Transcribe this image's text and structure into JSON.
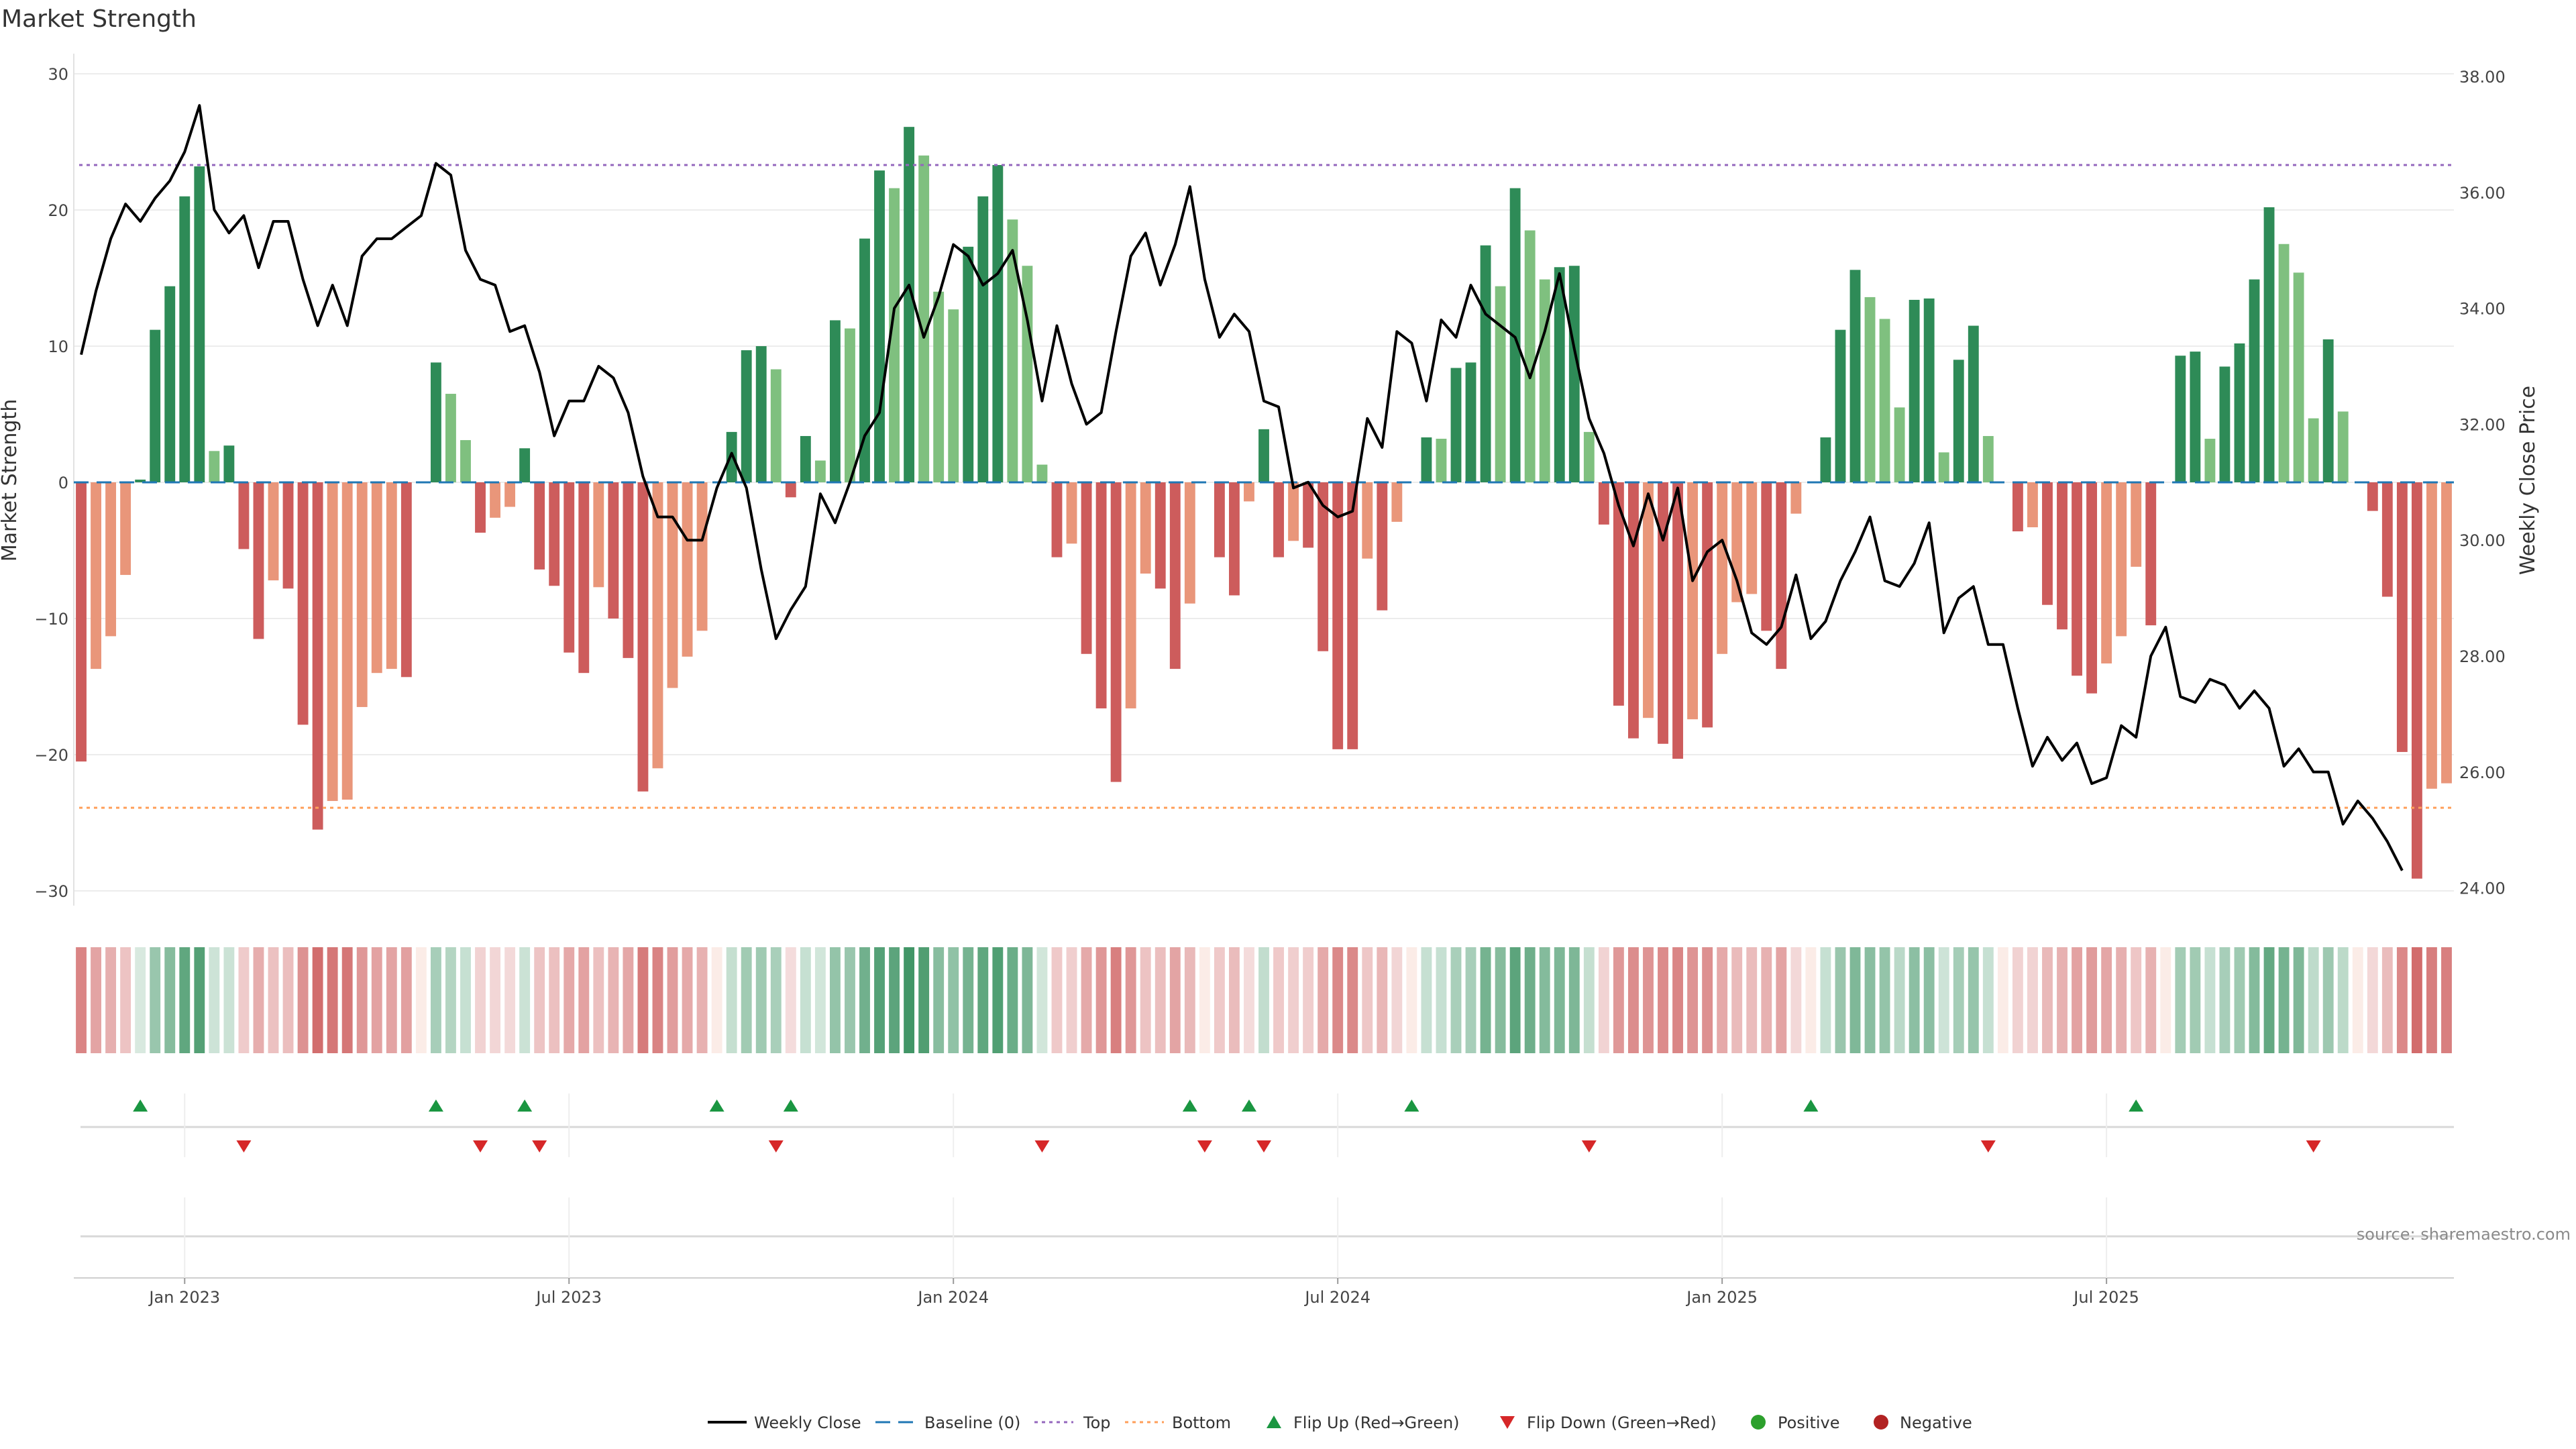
{
  "chart_data": {
    "type": "bar+line",
    "title": "Market Strength",
    "ylabel": "Market Strength",
    "y2label": "Weekly Close Price",
    "ylim": [
      -30,
      30
    ],
    "y2lim": [
      24,
      38
    ],
    "yticks": [
      "30",
      "20",
      "10",
      "0",
      "−10",
      "−20",
      "−30"
    ],
    "y2ticks": [
      "38.00",
      "36.00",
      "34.00",
      "32.00",
      "30.00",
      "28.00",
      "26.00",
      "24.00"
    ],
    "xticks": [
      "Jan 2023",
      "Jul 2023",
      "Jan 2024",
      "Jul 2024",
      "Jan 2025",
      "Jul 2025"
    ],
    "xtick_week_index": [
      7.5,
      33.5,
      59.5,
      85.5,
      111.5,
      137.5
    ],
    "top_line": 23.3,
    "bottom_line": -23.9,
    "baseline": 0,
    "strength": [
      -20.5,
      -13.7,
      -11.3,
      -6.8,
      0.2,
      11.2,
      14.4,
      21.0,
      23.2,
      2.3,
      2.7,
      -4.9,
      -11.5,
      -7.2,
      -7.8,
      -17.8,
      -25.5,
      -23.4,
      -23.3,
      -16.5,
      -14.0,
      -13.7,
      -14.3,
      0.0,
      8.8,
      6.5,
      3.1,
      -3.7,
      -2.6,
      -1.8,
      2.5,
      -6.4,
      -7.6,
      -12.5,
      -14.0,
      -7.7,
      -10.0,
      -12.9,
      -22.7,
      -21.0,
      -15.1,
      -12.8,
      -10.9,
      0.0,
      3.7,
      9.7,
      10.0,
      8.3,
      -1.1,
      3.4,
      1.6,
      11.9,
      11.3,
      17.9,
      22.9,
      21.6,
      26.1,
      24.0,
      14.0,
      12.7,
      17.3,
      21.0,
      23.3,
      19.3,
      15.9,
      1.3,
      -5.5,
      -4.5,
      -12.6,
      -16.6,
      -22.0,
      -16.6,
      -6.7,
      -7.8,
      -13.7,
      -8.9,
      0.0,
      -5.5,
      -8.3,
      -1.4,
      3.9,
      -5.5,
      -4.3,
      -4.8,
      -12.4,
      -19.6,
      -19.6,
      -5.6,
      -9.4,
      -2.9,
      0.0,
      3.3,
      3.2,
      8.4,
      8.8,
      17.4,
      14.4,
      21.6,
      18.5,
      14.9,
      15.8,
      15.9,
      3.7,
      -3.1,
      -16.4,
      -18.8,
      -17.3,
      -19.2,
      -20.3,
      -17.4,
      -18.0,
      -12.6,
      -8.8,
      -8.2,
      -10.9,
      -13.7,
      -2.3,
      0.0,
      3.3,
      11.2,
      15.6,
      13.6,
      12.0,
      5.5,
      13.4,
      13.5,
      2.2,
      9.0,
      11.5,
      3.4,
      0.0,
      -3.6,
      -3.3,
      -9.0,
      -10.8,
      -14.2,
      -15.5,
      -13.3,
      -11.3,
      -6.2,
      -10.5,
      0.0,
      9.3,
      9.6,
      3.2,
      8.5,
      10.2,
      14.9,
      20.2,
      17.5,
      15.4,
      4.7,
      10.5,
      5.2,
      0.0,
      -2.1,
      -8.4,
      -19.8,
      -29.1,
      -22.5,
      -22.1
    ],
    "weekly_close": [
      33.2,
      34.3,
      35.2,
      35.8,
      35.5,
      35.9,
      36.2,
      36.7,
      37.5,
      35.7,
      35.3,
      35.6,
      34.7,
      35.5,
      35.5,
      34.5,
      33.7,
      34.4,
      33.7,
      34.9,
      35.2,
      35.2,
      35.4,
      35.6,
      36.5,
      36.3,
      35.0,
      34.5,
      34.4,
      33.6,
      33.7,
      32.9,
      31.8,
      32.4,
      32.4,
      33.0,
      32.8,
      32.2,
      31.1,
      30.4,
      30.4,
      30.0,
      30.0,
      30.9,
      31.5,
      30.9,
      29.5,
      28.3,
      28.8,
      29.2,
      30.8,
      30.3,
      31.0,
      31.8,
      32.2,
      34.0,
      34.4,
      33.5,
      34.2,
      35.1,
      34.9,
      34.4,
      34.6,
      35.0,
      33.8,
      32.4,
      33.7,
      32.7,
      32.0,
      32.2,
      33.6,
      34.9,
      35.3,
      34.4,
      35.1,
      36.1,
      34.5,
      33.5,
      33.9,
      33.6,
      32.4,
      32.3,
      30.9,
      31.0,
      30.6,
      30.4,
      30.5,
      32.1,
      31.6,
      33.6,
      33.4,
      32.4,
      33.8,
      33.5,
      34.4,
      33.9,
      33.7,
      33.5,
      32.8,
      33.6,
      34.6,
      33.3,
      32.1,
      31.5,
      30.6,
      29.9,
      30.8,
      30.0,
      30.9,
      29.3,
      29.8,
      30.0,
      29.3,
      28.4,
      28.2,
      28.5,
      29.4,
      28.3,
      28.6,
      29.3,
      29.8,
      30.4,
      29.3,
      29.2,
      29.6,
      30.3,
      28.4,
      29.0,
      29.2,
      28.2,
      28.2,
      27.1,
      26.1,
      26.6,
      26.2,
      26.5,
      25.8,
      25.9,
      26.8,
      26.6,
      28.0,
      28.5,
      27.3,
      27.2,
      27.6,
      27.5,
      27.1,
      27.4,
      27.1,
      26.1,
      26.4,
      26.0,
      26.0,
      25.1,
      25.5,
      25.2,
      24.8,
      24.3
    ],
    "flip_up_week_index": [
      4,
      24,
      30,
      43,
      48,
      75,
      79,
      90,
      117,
      139
    ],
    "flip_down_week_index": [
      11,
      27,
      31,
      47,
      65,
      76,
      80,
      102,
      129,
      151
    ],
    "legend": [
      "Weekly Close",
      "Baseline (0)",
      "Top",
      "Bottom",
      "Flip Up (Red→Green)",
      "Flip Down (Green→Red)",
      "Positive",
      "Negative"
    ],
    "source": "source: sharemaestro.com"
  },
  "colors": {
    "pos_strong": "#2e8b57",
    "pos_light": "#7fc07f",
    "neg_strong": "#cd5c5c",
    "neg_light": "#e9967a",
    "line": "#000000",
    "baseline": "#1f77b4",
    "top": "#9467bd",
    "bottom": "#ff9f5a",
    "flip_up": "#1a9641",
    "flip_down": "#d62728",
    "positive_dot": "#2ca02c",
    "negative_dot": "#b22222"
  }
}
